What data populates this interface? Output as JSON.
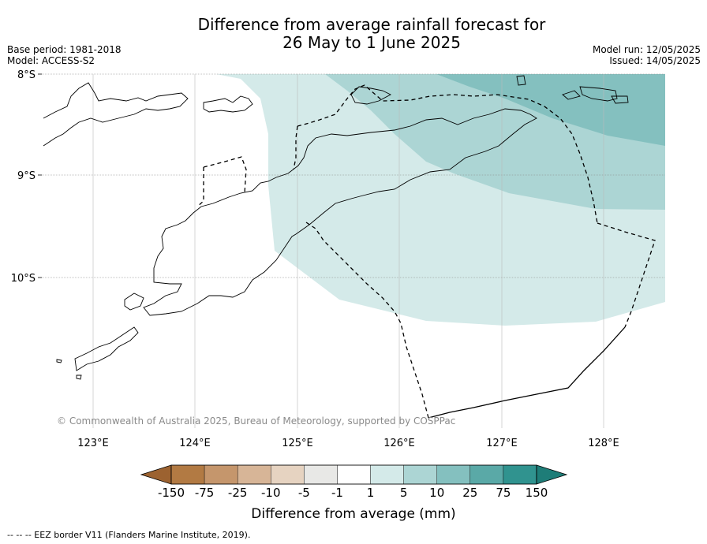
{
  "title_line1": "Difference from average rainfall forecast for",
  "title_line2": "26 May to 1 June 2025",
  "meta_left": [
    "Base period: 1981-2018",
    "Model: ACCESS-S2"
  ],
  "meta_right": [
    "Model run: 12/05/2025",
    "Issued: 14/05/2025"
  ],
  "map": {
    "lon_range": [
      122.5,
      128.6
    ],
    "lat_range": [
      -11.4,
      -8.0
    ],
    "lat_ticks": [
      {
        "value": -8,
        "label": "8°S"
      },
      {
        "value": -9,
        "label": "9°S"
      },
      {
        "value": -10,
        "label": "10°S"
      }
    ],
    "lon_ticks": [
      {
        "value": 123,
        "label": "123°E"
      },
      {
        "value": 124,
        "label": "124°E"
      },
      {
        "value": 125,
        "label": "125°E"
      },
      {
        "value": 126,
        "label": "126°E"
      },
      {
        "value": 127,
        "label": "127°E"
      },
      {
        "value": 128,
        "label": "128°E"
      }
    ],
    "copyright": "© Commonwealth of Australia 2025, Bureau of Meteorology, supported by COSPPac"
  },
  "colorbar": {
    "ticks": [
      "-150",
      "-75",
      "-25",
      "-10",
      "-5",
      "-1",
      "1",
      "5",
      "10",
      "25",
      "75",
      "150"
    ],
    "colors": [
      "#9c6230",
      "#b27a43",
      "#c5966c",
      "#d7b597",
      "#e6d3c1",
      "#e8e8e6",
      "#ffffff",
      "#d4eae9",
      "#acd5d4",
      "#84c0bf",
      "#5aa9a7",
      "#30938f",
      "#1e7d78"
    ],
    "label": "Difference from average (mm)"
  },
  "footnote": "--  --  -- EEZ border V11 (Flanders Marine Institute, 2019)."
}
